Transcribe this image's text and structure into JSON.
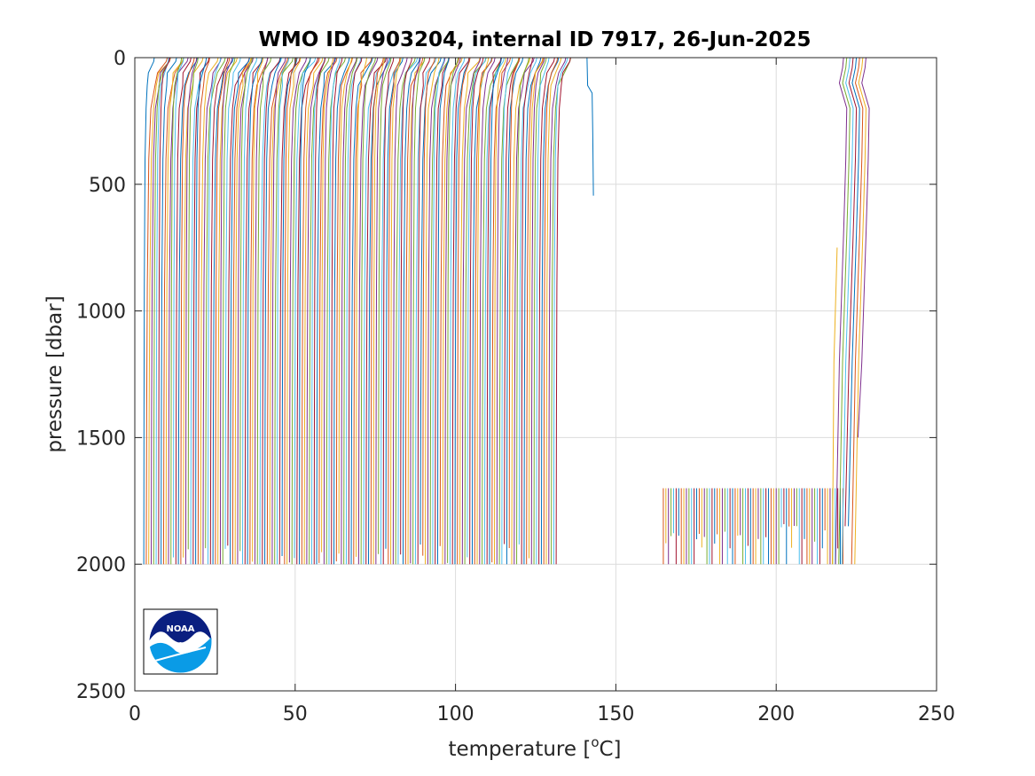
{
  "chart_data": {
    "type": "line",
    "title": "WMO ID 4903204, internal ID 7917, 26-Jun-2025",
    "xlabel_main": "temperature [",
    "xlabel_sup": "o",
    "xlabel_tail": "C]",
    "ylabel": "pressure [dbar]",
    "xlim": [
      0,
      250
    ],
    "ylim": [
      0,
      2500
    ],
    "y_reversed": true,
    "grid": true,
    "legend": "none",
    "xticks": [
      0,
      50,
      100,
      150,
      200,
      250
    ],
    "xtick_labels": [
      "0",
      "50",
      "100",
      "150",
      "200",
      "250"
    ],
    "yticks": [
      0,
      500,
      1000,
      1500,
      2000,
      2500
    ],
    "ytick_labels": [
      "0",
      "500",
      "1000",
      "1500",
      "2000",
      "2500"
    ],
    "colors": [
      "#0072BD",
      "#D95319",
      "#EDB120",
      "#7E2F8E",
      "#77AC30",
      "#4DBEEE",
      "#A2142F"
    ],
    "logo": "noaa-logo",
    "series_groups": [
      {
        "name_hint": "waterfall-profiles-group-1",
        "count": 168,
        "x_start": 2.8,
        "x_step": 0.77,
        "max_pressure": 2000,
        "deep_temperature_offset": 0,
        "surface_warming": 5.5,
        "thermocline_depth": 200
      },
      {
        "name_hint": "profile-141",
        "x_points": [
          141,
          141.2,
          142.6,
          142.8,
          143
        ],
        "p_points": [
          0,
          110,
          140,
          300,
          545
        ]
      },
      {
        "name_hint": "waterfall-profiles-group-2",
        "count": 71,
        "x_start": 164.8,
        "x_step": 0.8,
        "max_pressure": 2000,
        "top_pressure": 1700
      },
      {
        "name_hint": "waterfall-profiles-group-3",
        "count": 9,
        "x_start": 217.5,
        "x_step": 1.0,
        "max_pressure": 2000
      }
    ]
  }
}
